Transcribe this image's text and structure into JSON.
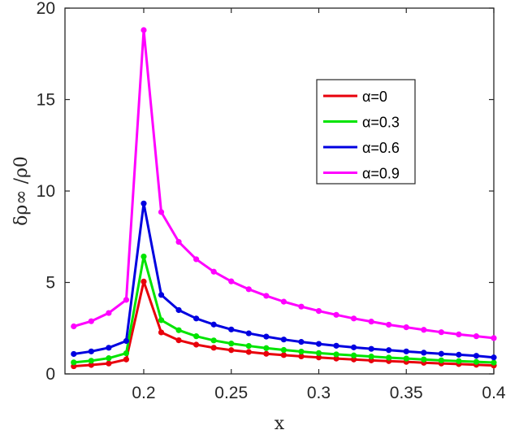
{
  "chart_data": {
    "type": "line",
    "xlabel": "x",
    "ylabel": "δρ∞ /ρ0",
    "xlim": [
      0.155,
      0.4
    ],
    "ylim": [
      0,
      20
    ],
    "xticks": [
      0.2,
      0.25,
      0.3,
      0.35,
      0.4
    ],
    "xtick_labels": [
      "0.2",
      "0.25",
      "0.3",
      "0.35",
      "0.4"
    ],
    "yticks": [
      0,
      5,
      10,
      15,
      20
    ],
    "ytick_labels": [
      "0",
      "5",
      "10",
      "15",
      "20"
    ],
    "grid": false,
    "legend_position": "upper-right",
    "x": [
      0.16,
      0.17,
      0.18,
      0.19,
      0.2,
      0.21,
      0.22,
      0.23,
      0.24,
      0.25,
      0.26,
      0.27,
      0.28,
      0.29,
      0.3,
      0.31,
      0.32,
      0.33,
      0.34,
      0.35,
      0.36,
      0.37,
      0.38,
      0.39,
      0.4
    ],
    "series": [
      {
        "name": "α=0",
        "color": "#e8000b",
        "values": [
          0.42,
          0.49,
          0.57,
          0.79,
          5.05,
          2.27,
          1.84,
          1.6,
          1.43,
          1.3,
          1.2,
          1.1,
          1.03,
          0.96,
          0.9,
          0.84,
          0.79,
          0.74,
          0.7,
          0.66,
          0.61,
          0.57,
          0.54,
          0.5,
          0.46
        ]
      },
      {
        "name": "α=0.3",
        "color": "#00e400",
        "values": [
          0.63,
          0.72,
          0.86,
          1.13,
          6.42,
          2.94,
          2.39,
          2.06,
          1.83,
          1.66,
          1.53,
          1.41,
          1.31,
          1.22,
          1.14,
          1.07,
          1.01,
          0.95,
          0.89,
          0.84,
          0.79,
          0.74,
          0.7,
          0.66,
          0.62
        ]
      },
      {
        "name": "α=0.6",
        "color": "#0000e0",
        "values": [
          1.09,
          1.23,
          1.43,
          1.8,
          9.32,
          4.32,
          3.49,
          3.03,
          2.7,
          2.43,
          2.22,
          2.04,
          1.88,
          1.75,
          1.64,
          1.54,
          1.45,
          1.37,
          1.3,
          1.23,
          1.16,
          1.1,
          1.05,
          0.99,
          0.9
        ]
      },
      {
        "name": "α=0.9",
        "color": "#ff00ff",
        "values": [
          2.6,
          2.88,
          3.33,
          4.05,
          18.8,
          8.85,
          7.22,
          6.27,
          5.59,
          5.06,
          4.63,
          4.27,
          3.95,
          3.68,
          3.44,
          3.23,
          3.03,
          2.86,
          2.69,
          2.55,
          2.41,
          2.28,
          2.16,
          2.06,
          1.96
        ]
      }
    ]
  }
}
